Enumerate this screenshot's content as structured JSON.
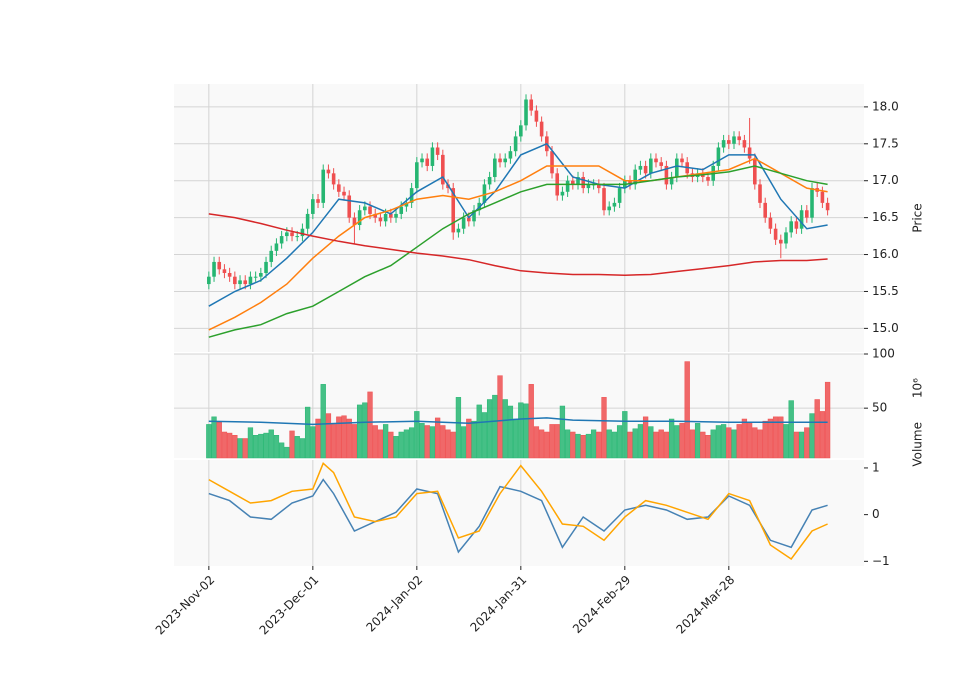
{
  "chart_data": {
    "type": "candlestick",
    "xlim": [
      -6.7,
      126
    ],
    "xticks": [
      {
        "value": 0,
        "label": "2023-Nov-02"
      },
      {
        "value": 20,
        "label": "2023-Dec-01"
      },
      {
        "value": 40,
        "label": "2024-Jan-02"
      },
      {
        "value": 60,
        "label": "2024-Jan-31"
      },
      {
        "value": 80,
        "label": "2024-Feb-29"
      },
      {
        "value": 100,
        "label": "2024-Mar-28"
      }
    ],
    "ylabel": "Price",
    "ylim": [
      14.68,
      18.31
    ],
    "yticks": [
      {
        "value": 15,
        "label": "15.0"
      },
      15.5,
      {
        "value": 16,
        "label": "16.0"
      },
      16.5,
      {
        "value": 17,
        "label": "17.0"
      },
      17.5,
      {
        "value": 18,
        "label": "18.0"
      }
    ],
    "grid": true,
    "up_color": "#26b672",
    "down_color": "#ef4f50",
    "open": [
      15.6,
      15.7,
      15.9,
      15.8,
      15.75,
      15.7,
      15.6,
      15.65,
      15.6,
      15.7,
      15.7,
      15.75,
      15.9,
      16.05,
      16.15,
      16.25,
      16.3,
      16.25,
      16.25,
      16.35,
      16.55,
      16.75,
      16.7,
      17.15,
      17.1,
      16.95,
      16.85,
      16.8,
      16.5,
      16.4,
      16.6,
      16.65,
      16.55,
      16.5,
      16.45,
      16.55,
      16.5,
      16.55,
      16.65,
      16.7,
      16.9,
      17.25,
      17.3,
      17.2,
      17.45,
      17.35,
      16.95,
      16.9,
      16.3,
      16.35,
      16.5,
      16.45,
      16.6,
      16.7,
      16.95,
      17.05,
      17.3,
      17.25,
      17.3,
      17.4,
      17.6,
      17.75,
      18.1,
      17.95,
      17.8,
      17.6,
      17.4,
      17.1,
      16.8,
      16.85,
      17.0,
      16.95,
      17.05,
      16.9,
      16.95,
      16.95,
      16.9,
      16.6,
      16.65,
      16.7,
      16.9,
      17.0,
      16.95,
      17.15,
      17.2,
      17.1,
      17.3,
      17.25,
      17.2,
      16.95,
      17.05,
      17.3,
      17.25,
      17.1,
      17.05,
      17.1,
      17.05,
      17.0,
      17.2,
      17.45,
      17.55,
      17.5,
      17.6,
      17.55,
      17.45,
      17.3,
      16.95,
      16.7,
      16.5,
      16.35,
      16.2,
      16.15,
      16.3,
      16.45,
      16.35,
      16.6,
      16.5,
      16.9,
      16.85,
      16.7
    ],
    "high": [
      15.77,
      15.97,
      15.97,
      15.87,
      15.82,
      15.77,
      15.72,
      15.72,
      15.77,
      15.77,
      15.82,
      15.97,
      16.12,
      16.22,
      16.32,
      16.37,
      16.37,
      16.32,
      16.42,
      16.62,
      16.82,
      16.82,
      17.22,
      17.22,
      17.17,
      17.02,
      16.92,
      16.87,
      16.57,
      16.67,
      16.72,
      16.72,
      16.62,
      16.57,
      16.62,
      16.62,
      16.62,
      16.72,
      16.77,
      16.97,
      17.32,
      17.37,
      17.37,
      17.52,
      17.52,
      17.42,
      17.02,
      16.97,
      16.42,
      16.57,
      16.57,
      16.67,
      16.77,
      17.02,
      17.12,
      17.37,
      17.37,
      17.37,
      17.47,
      17.67,
      17.82,
      18.17,
      18.17,
      18.02,
      17.87,
      17.67,
      17.47,
      17.17,
      16.92,
      17.07,
      17.07,
      17.12,
      17.12,
      17.02,
      17.02,
      17.02,
      16.97,
      16.72,
      16.77,
      16.97,
      17.07,
      17.07,
      17.22,
      17.27,
      17.27,
      17.37,
      17.37,
      17.32,
      17.27,
      17.12,
      17.37,
      17.37,
      17.32,
      17.17,
      17.17,
      17.17,
      17.12,
      17.27,
      17.52,
      17.62,
      17.62,
      17.67,
      17.67,
      17.62,
      17.85,
      17.37,
      17.02,
      16.77,
      16.57,
      16.42,
      16.27,
      16.37,
      16.52,
      16.52,
      16.67,
      16.67,
      16.97,
      16.97,
      16.92,
      16.77
    ],
    "low": [
      15.53,
      15.63,
      15.73,
      15.68,
      15.63,
      15.53,
      15.53,
      15.53,
      15.53,
      15.63,
      15.63,
      15.68,
      15.83,
      15.98,
      16.08,
      16.18,
      16.18,
      16.18,
      16.18,
      16.28,
      16.48,
      16.63,
      16.63,
      17.03,
      16.88,
      16.78,
      16.73,
      16.43,
      16.15,
      16.33,
      16.53,
      16.48,
      16.43,
      16.38,
      16.38,
      16.43,
      16.43,
      16.48,
      16.58,
      16.63,
      16.83,
      17.18,
      17.13,
      17.13,
      17.28,
      16.88,
      16.83,
      16.2,
      16.23,
      16.28,
      16.38,
      16.38,
      16.53,
      16.63,
      16.88,
      16.98,
      17.18,
      17.18,
      17.23,
      17.33,
      17.53,
      17.68,
      17.88,
      17.73,
      17.53,
      17.33,
      17.03,
      16.73,
      16.73,
      16.78,
      16.88,
      16.88,
      16.83,
      16.83,
      16.88,
      16.83,
      16.53,
      16.53,
      16.58,
      16.63,
      16.83,
      16.88,
      16.88,
      17.08,
      17.03,
      17.03,
      17.18,
      17.13,
      16.88,
      16.88,
      16.98,
      17.18,
      17.03,
      16.98,
      16.98,
      16.98,
      16.93,
      16.93,
      17.13,
      17.38,
      17.43,
      17.43,
      17.48,
      17.38,
      17.23,
      16.88,
      16.63,
      16.43,
      16.28,
      16.13,
      15.95,
      16.08,
      16.23,
      16.28,
      16.28,
      16.43,
      16.43,
      16.78,
      16.63,
      16.53
    ],
    "close": [
      15.7,
      15.9,
      15.8,
      15.75,
      15.7,
      15.6,
      15.65,
      15.6,
      15.7,
      15.7,
      15.75,
      15.9,
      16.05,
      16.15,
      16.25,
      16.3,
      16.25,
      16.25,
      16.35,
      16.55,
      16.75,
      16.7,
      17.15,
      17.1,
      16.95,
      16.85,
      16.8,
      16.5,
      16.4,
      16.6,
      16.65,
      16.55,
      16.5,
      16.45,
      16.55,
      16.5,
      16.55,
      16.65,
      16.7,
      16.9,
      17.25,
      17.3,
      17.2,
      17.45,
      17.35,
      16.95,
      16.9,
      16.3,
      16.35,
      16.5,
      16.45,
      16.6,
      16.7,
      16.95,
      17.05,
      17.3,
      17.25,
      17.3,
      17.4,
      17.6,
      17.75,
      18.1,
      17.95,
      17.8,
      17.6,
      17.4,
      17.1,
      16.8,
      16.85,
      17.0,
      16.95,
      17.05,
      16.9,
      16.95,
      16.95,
      16.9,
      16.6,
      16.65,
      16.7,
      16.9,
      17.0,
      16.95,
      17.15,
      17.2,
      17.1,
      17.3,
      17.25,
      17.2,
      16.95,
      17.05,
      17.3,
      17.25,
      17.1,
      17.05,
      17.1,
      17.05,
      17.0,
      17.2,
      17.45,
      17.55,
      17.5,
      17.6,
      17.55,
      17.45,
      17.3,
      16.95,
      16.7,
      16.5,
      16.35,
      16.2,
      16.15,
      16.3,
      16.45,
      16.35,
      16.6,
      16.5,
      16.9,
      16.85,
      16.7,
      16.6
    ],
    "lines": [
      {
        "color": "#1f77b4",
        "x": [
          0,
          5,
          10,
          15,
          20,
          25,
          30,
          35,
          40,
          45,
          50,
          55,
          60,
          65,
          70,
          75,
          80,
          85,
          90,
          95,
          100,
          105,
          110,
          115,
          119
        ],
        "values": [
          15.3,
          15.5,
          15.65,
          15.95,
          16.3,
          16.75,
          16.7,
          16.55,
          16.85,
          17.05,
          16.5,
          16.85,
          17.35,
          17.5,
          17.05,
          16.95,
          16.9,
          17.1,
          17.2,
          17.15,
          17.35,
          17.35,
          16.75,
          16.35,
          16.4
        ]
      },
      {
        "color": "#ff7f0e",
        "x": [
          0,
          5,
          10,
          15,
          20,
          25,
          30,
          35,
          40,
          45,
          50,
          55,
          60,
          65,
          70,
          75,
          80,
          85,
          90,
          95,
          100,
          105,
          110,
          115,
          119
        ],
        "values": [
          14.98,
          15.15,
          15.35,
          15.6,
          15.95,
          16.25,
          16.5,
          16.6,
          16.75,
          16.8,
          16.75,
          16.85,
          17.0,
          17.2,
          17.2,
          17.2,
          17.0,
          17.0,
          17.05,
          17.1,
          17.15,
          17.3,
          17.1,
          16.9,
          16.85
        ]
      },
      {
        "color": "#2ca02c",
        "x": [
          0,
          5,
          10,
          15,
          20,
          25,
          30,
          35,
          40,
          45,
          50,
          55,
          60,
          65,
          70,
          75,
          80,
          85,
          90,
          95,
          100,
          105,
          110,
          115,
          119
        ],
        "values": [
          14.88,
          14.98,
          15.05,
          15.2,
          15.3,
          15.5,
          15.7,
          15.85,
          16.1,
          16.35,
          16.55,
          16.7,
          16.85,
          16.95,
          16.95,
          16.95,
          16.95,
          17.0,
          17.05,
          17.08,
          17.12,
          17.2,
          17.1,
          17.0,
          16.95
        ]
      },
      {
        "color": "#d62728",
        "x": [
          0,
          5,
          10,
          15,
          20,
          25,
          30,
          35,
          40,
          45,
          50,
          55,
          60,
          65,
          70,
          75,
          80,
          85,
          90,
          95,
          100,
          105,
          110,
          115,
          119
        ],
        "values": [
          16.55,
          16.5,
          16.42,
          16.33,
          16.25,
          16.18,
          16.12,
          16.07,
          16.02,
          15.98,
          15.93,
          15.85,
          15.78,
          15.75,
          15.73,
          15.73,
          15.72,
          15.73,
          15.77,
          15.81,
          15.85,
          15.9,
          15.92,
          15.92,
          15.94
        ]
      }
    ],
    "volume": {
      "ylabel": "Volume",
      "unit": "10⁶",
      "ylim": [
        4,
        100
      ],
      "yticks": [
        50,
        100
      ],
      "values": [
        35,
        42,
        37,
        28,
        27,
        25,
        22,
        22,
        32,
        25,
        26,
        27,
        30,
        25,
        18,
        14,
        29,
        24,
        22,
        51,
        33,
        40,
        72,
        45,
        35,
        42,
        43,
        40,
        35,
        53,
        55,
        65,
        34,
        30,
        35,
        28,
        24,
        28,
        30,
        32,
        47,
        36,
        34,
        33,
        41,
        34,
        30,
        28,
        60,
        33,
        40,
        38,
        53,
        46,
        58,
        62,
        80,
        58,
        52,
        40,
        55,
        54,
        72,
        33,
        30,
        28,
        35,
        35,
        52,
        30,
        28,
        26,
        25,
        26,
        30,
        28,
        60,
        30,
        28,
        34,
        47,
        28,
        31,
        35,
        42,
        33,
        28,
        30,
        28,
        40,
        34,
        36,
        93,
        30,
        36,
        28,
        25,
        30,
        34,
        35,
        32,
        30,
        35,
        40,
        37,
        32,
        30,
        38,
        40,
        42,
        42,
        35,
        57,
        28,
        28,
        32,
        45,
        58,
        47,
        74
      ],
      "line": {
        "color": "#1f77b4",
        "x": [
          0,
          10,
          20,
          30,
          40,
          50,
          60,
          65,
          70,
          80,
          90,
          100,
          110,
          119
        ],
        "values": [
          38,
          37,
          35,
          37,
          38,
          36,
          40,
          41,
          39,
          38,
          38,
          37,
          37,
          37
        ]
      }
    },
    "oscillator": {
      "ylim": [
        -1.1,
        1.17
      ],
      "yticks": [
        {
          "value": -1,
          "label": "−1"
        },
        0,
        1
      ],
      "series": [
        {
          "color": "#4682b4",
          "x": [
            0,
            4,
            8,
            12,
            16,
            20,
            22,
            24,
            28,
            32,
            36,
            40,
            44,
            48,
            52,
            56,
            60,
            64,
            68,
            72,
            76,
            80,
            84,
            88,
            92,
            96,
            100,
            104,
            108,
            112,
            116,
            119
          ],
          "values": [
            0.45,
            0.3,
            -0.05,
            -0.1,
            0.25,
            0.4,
            0.75,
            0.45,
            -0.35,
            -0.15,
            0.05,
            0.55,
            0.45,
            -0.8,
            -0.25,
            0.6,
            0.5,
            0.3,
            -0.7,
            -0.05,
            -0.35,
            0.1,
            0.2,
            0.1,
            -0.1,
            -0.05,
            0.4,
            0.2,
            -0.55,
            -0.7,
            0.1,
            0.2
          ]
        },
        {
          "color": "#ffa500",
          "x": [
            0,
            4,
            8,
            12,
            16,
            20,
            22,
            24,
            28,
            32,
            36,
            40,
            44,
            48,
            52,
            56,
            60,
            64,
            68,
            72,
            76,
            80,
            84,
            88,
            92,
            96,
            100,
            104,
            108,
            112,
            116,
            119
          ],
          "values": [
            0.75,
            0.5,
            0.25,
            0.3,
            0.5,
            0.55,
            1.1,
            0.9,
            -0.05,
            -0.15,
            -0.05,
            0.45,
            0.5,
            -0.5,
            -0.35,
            0.45,
            1.05,
            0.5,
            -0.2,
            -0.25,
            -0.55,
            -0.05,
            0.3,
            0.2,
            0.05,
            -0.1,
            0.45,
            0.3,
            -0.65,
            -0.95,
            -0.35,
            -0.2
          ]
        }
      ]
    }
  }
}
